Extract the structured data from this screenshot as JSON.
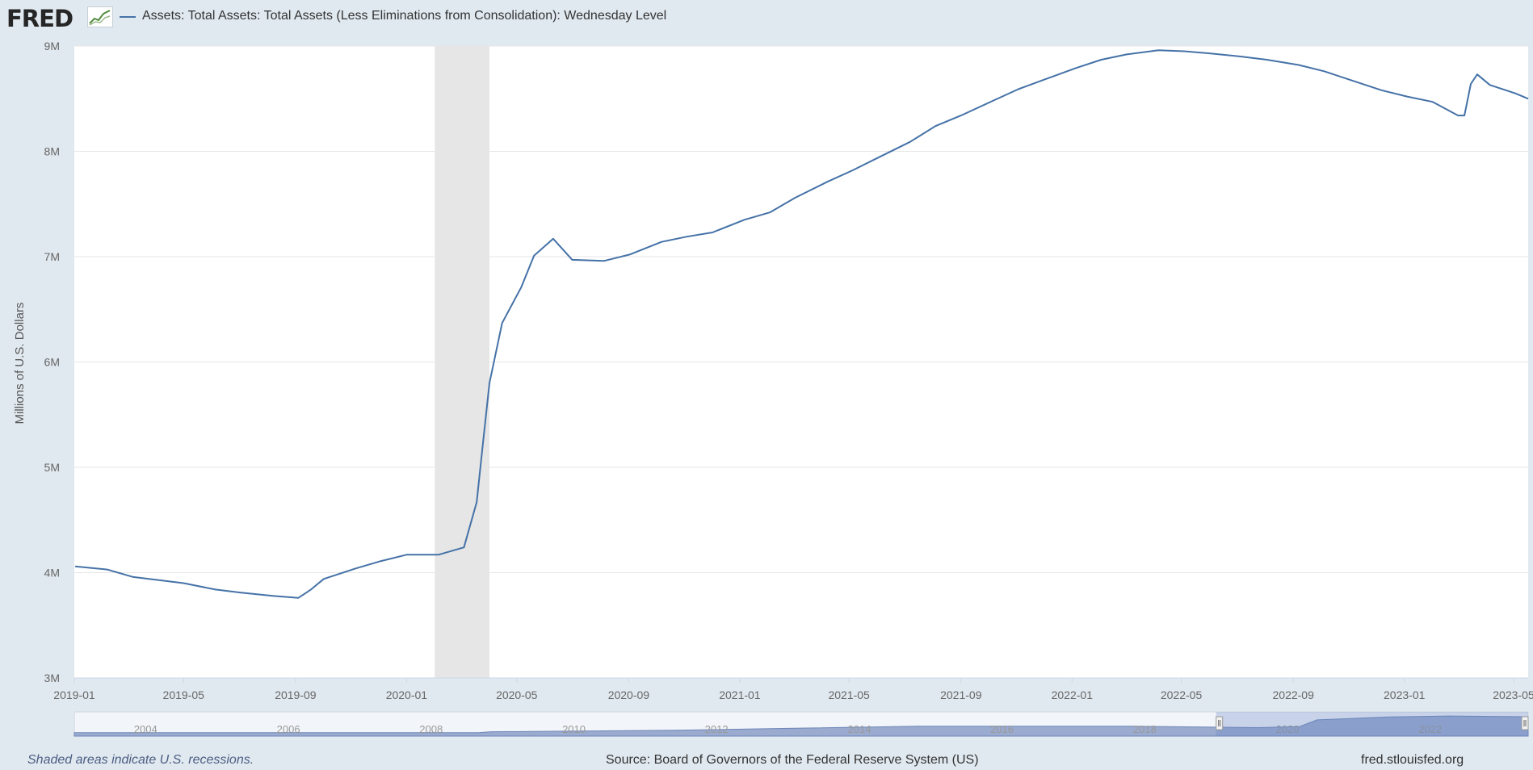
{
  "header": {
    "logo": "FRED",
    "logo_icon": "chart-icon",
    "legend_label": "Assets: Total Assets: Total Assets (Less Eliminations from Consolidation): Wednesday Level"
  },
  "footer": {
    "note": "Shaded areas indicate U.S. recessions.",
    "source": "Source: Board of Governors of the Federal Reserve System (US)",
    "site": "fred.stlouisfed.org"
  },
  "colors": {
    "line": "#4572a7",
    "background": "#e1e9f0",
    "recession": "#e6e6e6",
    "navigator": "#6f86b8"
  },
  "chart_data": {
    "type": "line",
    "title": "",
    "ylabel": "Millions of U.S. Dollars",
    "xlabel": "",
    "ylim": [
      3000000,
      9000000
    ],
    "yticks": [
      3000000,
      4000000,
      5000000,
      6000000,
      7000000,
      8000000,
      9000000
    ],
    "ytick_labels": [
      "3M",
      "4M",
      "5M",
      "6M",
      "7M",
      "8M",
      "9M"
    ],
    "xlim": [
      "2019-01-01",
      "2023-05-17"
    ],
    "xticks": [
      "2019-01",
      "2019-05",
      "2019-09",
      "2020-01",
      "2020-05",
      "2020-09",
      "2021-01",
      "2021-05",
      "2021-09",
      "2022-01",
      "2022-05",
      "2022-09",
      "2023-01",
      "2023-05"
    ],
    "grid": true,
    "legend": "top-left",
    "recession": [
      "2020-02",
      "2020-04"
    ],
    "series": [
      {
        "name": "Assets: Total Assets: Total Assets (Less Eliminations from Consolidation): Wednesday Level",
        "points": [
          [
            "2019-01-02",
            4060000
          ],
          [
            "2019-02-06",
            4030000
          ],
          [
            "2019-03-06",
            3960000
          ],
          [
            "2019-04-03",
            3930000
          ],
          [
            "2019-05-01",
            3900000
          ],
          [
            "2019-06-05",
            3840000
          ],
          [
            "2019-07-03",
            3810000
          ],
          [
            "2019-08-07",
            3780000
          ],
          [
            "2019-09-04",
            3760000
          ],
          [
            "2019-09-18",
            3840000
          ],
          [
            "2019-10-02",
            3940000
          ],
          [
            "2019-11-06",
            4040000
          ],
          [
            "2019-12-04",
            4110000
          ],
          [
            "2020-01-01",
            4170000
          ],
          [
            "2020-02-05",
            4170000
          ],
          [
            "2020-03-04",
            4240000
          ],
          [
            "2020-03-18",
            4670000
          ],
          [
            "2020-03-25",
            5240000
          ],
          [
            "2020-04-01",
            5800000
          ],
          [
            "2020-04-15",
            6370000
          ],
          [
            "2020-05-06",
            6710000
          ],
          [
            "2020-05-20",
            7010000
          ],
          [
            "2020-06-10",
            7170000
          ],
          [
            "2020-07-01",
            6970000
          ],
          [
            "2020-08-05",
            6960000
          ],
          [
            "2020-09-02",
            7020000
          ],
          [
            "2020-10-07",
            7140000
          ],
          [
            "2020-11-04",
            7190000
          ],
          [
            "2020-12-02",
            7230000
          ],
          [
            "2021-01-06",
            7350000
          ],
          [
            "2021-02-03",
            7420000
          ],
          [
            "2021-03-03",
            7560000
          ],
          [
            "2021-04-07",
            7710000
          ],
          [
            "2021-05-05",
            7820000
          ],
          [
            "2021-06-02",
            7940000
          ],
          [
            "2021-07-07",
            8090000
          ],
          [
            "2021-08-04",
            8240000
          ],
          [
            "2021-09-01",
            8340000
          ],
          [
            "2021-10-06",
            8480000
          ],
          [
            "2021-11-03",
            8590000
          ],
          [
            "2021-12-01",
            8680000
          ],
          [
            "2022-01-05",
            8790000
          ],
          [
            "2022-02-02",
            8870000
          ],
          [
            "2022-03-02",
            8920000
          ],
          [
            "2022-04-06",
            8960000
          ],
          [
            "2022-05-04",
            8950000
          ],
          [
            "2022-06-01",
            8930000
          ],
          [
            "2022-07-06",
            8900000
          ],
          [
            "2022-08-03",
            8870000
          ],
          [
            "2022-09-07",
            8820000
          ],
          [
            "2022-10-05",
            8760000
          ],
          [
            "2022-11-02",
            8680000
          ],
          [
            "2022-12-07",
            8580000
          ],
          [
            "2023-01-04",
            8520000
          ],
          [
            "2023-02-01",
            8470000
          ],
          [
            "2023-03-01",
            8340000
          ],
          [
            "2023-03-08",
            8340000
          ],
          [
            "2023-03-15",
            8640000
          ],
          [
            "2023-03-22",
            8730000
          ],
          [
            "2023-04-05",
            8630000
          ],
          [
            "2023-05-03",
            8550000
          ],
          [
            "2023-05-17",
            8500000
          ]
        ]
      }
    ],
    "navigator": {
      "labels": [
        "2004",
        "2006",
        "2008",
        "2010",
        "2012",
        "2014",
        "2016",
        "2018",
        "2020",
        "2022"
      ],
      "range": [
        "2003-01-01",
        "2023-05-17"
      ],
      "selection": [
        "2019-01-01",
        "2023-05-17"
      ]
    }
  }
}
